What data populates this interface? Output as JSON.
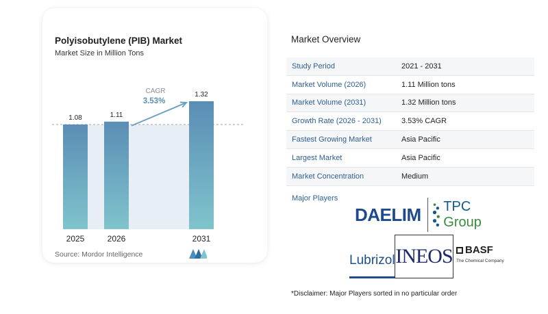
{
  "chart_data": {
    "type": "bar",
    "title": "Polyisobutylene (PIB) Market",
    "subtitle": "Market Size in Million Tons",
    "categories": [
      "2025",
      "2026",
      "2031"
    ],
    "values": [
      1.08,
      1.11,
      1.32
    ],
    "data_labels": [
      "1.08",
      "1.11",
      "1.32"
    ],
    "annotation": {
      "label": "CAGR",
      "value": "3.53%"
    },
    "dashed_reference_value": 1.08,
    "ylim": [
      0,
      1.32
    ],
    "bar_color": "#5b8db5",
    "bar_color_bottom": "#7fc4cc",
    "shade_color": "#e7eef5",
    "arrow_color": "#6aa0c2"
  },
  "source": "Source: Mordor Intelligence",
  "overview": {
    "title": "Market Overview",
    "rows": [
      {
        "label": "Study Period",
        "value": "2021 - 2031"
      },
      {
        "label": "Market Volume (2026)",
        "value": "1.11 Million tons"
      },
      {
        "label": "Market Volume (2031)",
        "value": "1.32 Million tons"
      },
      {
        "label": "Growth Rate (2026 - 2031)",
        "value": "3.53% CAGR"
      },
      {
        "label": "Fastest Growing Market",
        "value": "Asia Pacific"
      },
      {
        "label": "Largest Market",
        "value": "Asia Pacific"
      },
      {
        "label": "Market Concentration",
        "value": "Medium"
      }
    ]
  },
  "players": {
    "label": "Major Players",
    "daelim": "DAELIM",
    "tpc_a": "TPC",
    "tpc_b": "Group",
    "lubrizol": "Lubrizol",
    "ineos": "INEOS",
    "basf": "BASF",
    "basf_sub": "The Chemical Company"
  },
  "disclaimer": "*Disclaimer: Major Players sorted in no particular order"
}
